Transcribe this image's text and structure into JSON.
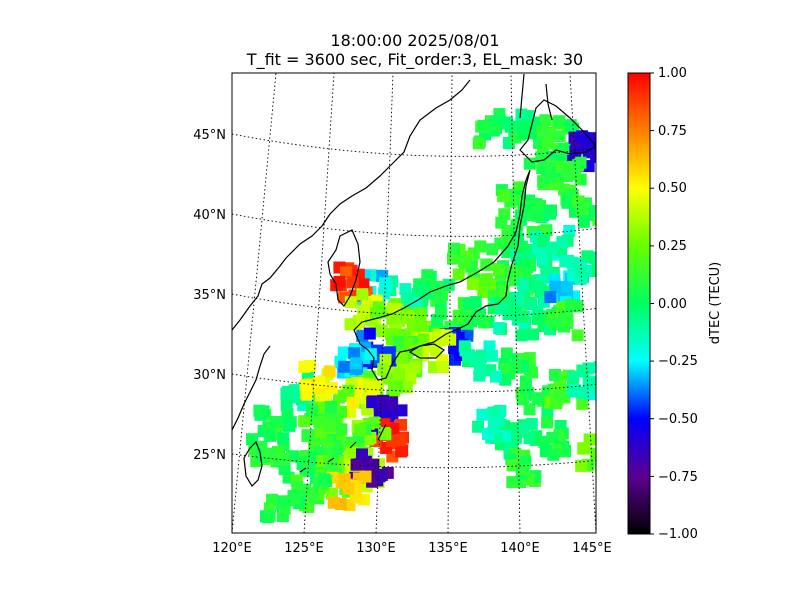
{
  "chart_data": {
    "type": "heatmap",
    "title": "18:00:00 2025/08/01",
    "subtitle": "T_fit = 3600 sec, Fit_order:3, EL_mask: 30",
    "xlabel": "",
    "ylabel": "",
    "x_ticks": [
      "120°E",
      "125°E",
      "130°E",
      "135°E",
      "140°E",
      "145°E"
    ],
    "y_ticks": [
      "25°N",
      "30°N",
      "35°N",
      "40°N",
      "45°N"
    ],
    "lon_range": [
      120,
      145
    ],
    "lat_range": [
      20,
      49
    ],
    "projection": "conic with dotted lat/lon gridlines",
    "grid": true,
    "colorbar": {
      "label": "dTEC (TECU)",
      "range": [
        -1.0,
        1.0
      ],
      "ticks": [
        "1.00",
        "0.75",
        "0.50",
        "0.25",
        "0.00",
        "−0.25",
        "−0.50",
        "−0.75",
        "−1.00"
      ],
      "colormap": [
        "#000000",
        "#5a0090",
        "#0000ff",
        "#00ffff",
        "#00ff60",
        "#66ff00",
        "#ffff00",
        "#ff8000",
        "#ff0000"
      ]
    },
    "points": [
      {
        "lon": 138,
        "lat": 45.5,
        "v": 0.05
      },
      {
        "lon": 140,
        "lat": 45.5,
        "v": 0.0
      },
      {
        "lon": 142.5,
        "lat": 45,
        "v": 0.1
      },
      {
        "lon": 144.5,
        "lat": 44,
        "v": -0.6
      },
      {
        "lon": 141.5,
        "lat": 43,
        "v": 0.05
      },
      {
        "lon": 143,
        "lat": 42.5,
        "v": 0.1
      },
      {
        "lon": 139.5,
        "lat": 41,
        "v": 0.1
      },
      {
        "lon": 141,
        "lat": 40,
        "v": 0.05
      },
      {
        "lon": 144,
        "lat": 40.5,
        "v": 0.1
      },
      {
        "lon": 139,
        "lat": 38.5,
        "v": 0.1
      },
      {
        "lon": 140.5,
        "lat": 37.5,
        "v": -0.05
      },
      {
        "lon": 142,
        "lat": 38,
        "v": -0.1
      },
      {
        "lon": 136,
        "lat": 37,
        "v": 0.15
      },
      {
        "lon": 137.5,
        "lat": 36,
        "v": 0.2
      },
      {
        "lon": 139.5,
        "lat": 36,
        "v": 0.1
      },
      {
        "lon": 141,
        "lat": 35.5,
        "v": -0.05
      },
      {
        "lon": 143,
        "lat": 35.5,
        "v": -0.3
      },
      {
        "lon": 144,
        "lat": 36.5,
        "v": -0.1
      },
      {
        "lon": 134,
        "lat": 35.5,
        "v": 0.05
      },
      {
        "lon": 132,
        "lat": 34.8,
        "v": -0.1
      },
      {
        "lon": 129.5,
        "lat": 35.2,
        "v": -0.25
      },
      {
        "lon": 128.3,
        "lat": 35.8,
        "v": 0.9
      },
      {
        "lon": 129,
        "lat": 34,
        "v": 0.4
      },
      {
        "lon": 131,
        "lat": 33.5,
        "v": 0.3
      },
      {
        "lon": 133,
        "lat": 33,
        "v": 0.25
      },
      {
        "lon": 135,
        "lat": 33,
        "v": 0.1
      },
      {
        "lon": 137,
        "lat": 33.5,
        "v": 0.05
      },
      {
        "lon": 139,
        "lat": 33.8,
        "v": -0.05
      },
      {
        "lon": 141,
        "lat": 33.5,
        "v": 0.0
      },
      {
        "lon": 143,
        "lat": 33.5,
        "v": 0.1
      },
      {
        "lon": 135.5,
        "lat": 31.8,
        "v": -0.5
      },
      {
        "lon": 134,
        "lat": 31.5,
        "v": 0.4
      },
      {
        "lon": 132,
        "lat": 31.2,
        "v": 0.2
      },
      {
        "lon": 130,
        "lat": 31.5,
        "v": -0.45
      },
      {
        "lon": 128.5,
        "lat": 30.7,
        "v": -0.3
      },
      {
        "lon": 131.5,
        "lat": 30,
        "v": 0.3
      },
      {
        "lon": 130,
        "lat": 29,
        "v": 0.2
      },
      {
        "lon": 129,
        "lat": 28.5,
        "v": 0.45
      },
      {
        "lon": 127,
        "lat": 28,
        "v": 0.2
      },
      {
        "lon": 130.5,
        "lat": 27.3,
        "v": -0.6
      },
      {
        "lon": 131,
        "lat": 25.8,
        "v": 0.9
      },
      {
        "lon": 129.5,
        "lat": 26,
        "v": 0.3
      },
      {
        "lon": 128,
        "lat": 25.5,
        "v": 0.15
      },
      {
        "lon": 126.5,
        "lat": 25,
        "v": 0.1
      },
      {
        "lon": 125,
        "lat": 24.5,
        "v": 0.05
      },
      {
        "lon": 127,
        "lat": 23.5,
        "v": 0.2
      },
      {
        "lon": 129,
        "lat": 24,
        "v": 0.4
      },
      {
        "lon": 129.6,
        "lat": 24.3,
        "v": -0.7
      },
      {
        "lon": 128,
        "lat": 22.8,
        "v": 0.6
      },
      {
        "lon": 125.5,
        "lat": 22.5,
        "v": 0.1
      },
      {
        "lon": 123.5,
        "lat": 22,
        "v": 0.05
      },
      {
        "lon": 122.5,
        "lat": 25,
        "v": 0.1
      },
      {
        "lon": 123,
        "lat": 27,
        "v": 0.05
      },
      {
        "lon": 124.5,
        "lat": 29,
        "v": -0.1
      },
      {
        "lon": 126,
        "lat": 29.5,
        "v": 0.5
      },
      {
        "lon": 126,
        "lat": 27,
        "v": 0.15
      },
      {
        "lon": 141,
        "lat": 28.5,
        "v": 0.05
      },
      {
        "lon": 143,
        "lat": 29,
        "v": 0.15
      },
      {
        "lon": 142,
        "lat": 26,
        "v": 0.05
      },
      {
        "lon": 139.5,
        "lat": 26,
        "v": -0.05
      },
      {
        "lon": 140,
        "lat": 24,
        "v": 0.1
      },
      {
        "lon": 138,
        "lat": 27,
        "v": -0.15
      },
      {
        "lon": 145,
        "lat": 25,
        "v": 0.2
      },
      {
        "lon": 144.5,
        "lat": 29.5,
        "v": -0.1
      },
      {
        "lon": 139.5,
        "lat": 30.5,
        "v": 0.05
      },
      {
        "lon": 137,
        "lat": 30.8,
        "v": -0.1
      }
    ]
  }
}
